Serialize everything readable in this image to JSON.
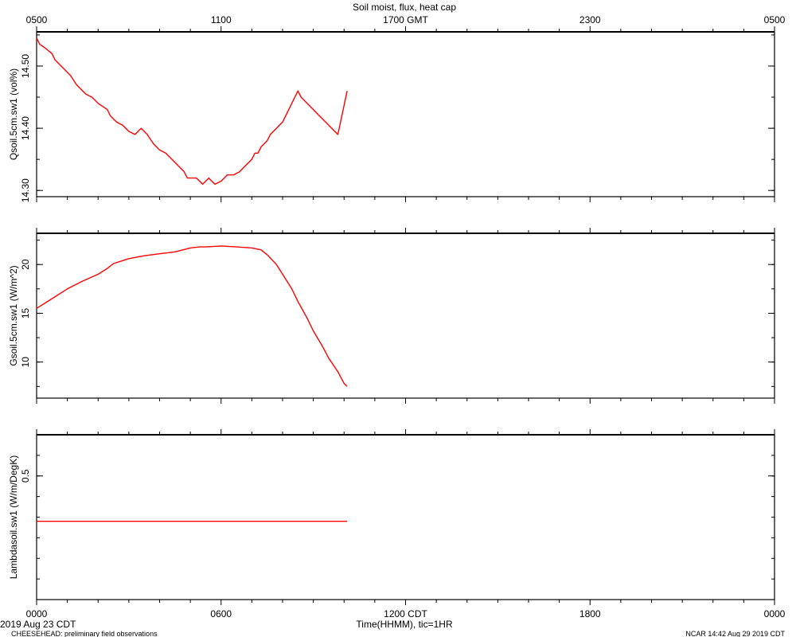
{
  "title": "Soil moist, flux, heat cap",
  "top_axis": {
    "labels": [
      "0500",
      "1100",
      "1700 GMT",
      "2300",
      "0500"
    ],
    "hours": [
      0,
      6,
      12,
      18,
      24
    ]
  },
  "bottom_axis": {
    "labels": [
      "0000",
      "0600",
      "1200 CDT",
      "1800",
      "0000"
    ],
    "hours": [
      0,
      6,
      12,
      18,
      24
    ],
    "xlabel": "Time(HHMM), tic=1HR"
  },
  "footer": {
    "date": "2019 Aug 23 CDT",
    "project": "CHEESEHEAD: preliminary field observations",
    "credit": "NCAR 14:42 Aug 29 2019 CDT"
  },
  "colors": {
    "series": "#ff0000",
    "axes": "#000000"
  },
  "chart_data": [
    {
      "type": "line",
      "ylabel": "Qsoil.5cm.sw1 (vol%)",
      "xlim": [
        0,
        24
      ],
      "ylim": [
        14.29,
        14.555
      ],
      "ytick_values": [
        14.3,
        14.4,
        14.5
      ],
      "ytick_labels": [
        "14.30",
        "14.40",
        "14.50"
      ],
      "ytick_minor": 0.05,
      "series": [
        {
          "x": [
            0,
            0.1,
            0.25,
            0.5,
            0.6,
            0.8,
            1.0,
            1.1,
            1.3,
            1.5,
            1.6,
            1.8,
            2.0,
            2.3,
            2.4,
            2.6,
            2.8,
            3.0,
            3.2,
            3.4,
            3.6,
            3.8,
            4.0,
            4.2,
            4.4,
            4.6,
            4.8,
            4.9,
            5.0,
            5.2,
            5.4,
            5.6,
            5.8,
            6.0,
            6.2,
            6.4,
            6.6,
            6.8,
            6.9,
            7.0,
            7.1,
            7.2,
            7.3,
            7.4,
            7.5,
            7.6,
            7.8,
            8.0,
            8.1,
            8.3,
            8.5,
            8.6,
            8.8,
            9.0,
            9.2,
            9.4,
            9.6,
            9.8,
            10.1
          ],
          "y": [
            14.545,
            14.535,
            14.53,
            14.52,
            14.51,
            14.5,
            14.49,
            14.485,
            14.47,
            14.46,
            14.455,
            14.45,
            14.44,
            14.43,
            14.42,
            14.41,
            14.405,
            14.395,
            14.39,
            14.4,
            14.39,
            14.375,
            14.365,
            14.36,
            14.35,
            14.34,
            14.33,
            14.32,
            14.32,
            14.32,
            14.31,
            14.32,
            14.31,
            14.315,
            14.325,
            14.325,
            14.33,
            14.34,
            14.345,
            14.35,
            14.36,
            14.36,
            14.37,
            14.375,
            14.38,
            14.39,
            14.4,
            14.41,
            14.42,
            14.44,
            14.46,
            14.45,
            14.44,
            14.43,
            14.42,
            14.41,
            14.4,
            14.39,
            14.46
          ]
        }
      ]
    },
    {
      "type": "line",
      "ylabel": "Gsoil.5cm.sw1 (W/m^2)",
      "xlim": [
        0,
        24
      ],
      "ylim": [
        6.3,
        23.2
      ],
      "ytick_values": [
        10,
        15,
        20
      ],
      "ytick_labels": [
        "10",
        "15",
        "20"
      ],
      "ytick_minor": 2.5,
      "series": [
        {
          "x": [
            0,
            0.5,
            1.0,
            1.5,
            2.0,
            2.3,
            2.5,
            2.8,
            3.0,
            3.5,
            4.0,
            4.5,
            5.0,
            5.3,
            5.5,
            6.0,
            6.5,
            7.0,
            7.3,
            7.5,
            7.8,
            8.0,
            8.3,
            8.5,
            8.8,
            9.0,
            9.3,
            9.5,
            9.8,
            10.0,
            10.1
          ],
          "y": [
            15.5,
            16.5,
            17.5,
            18.3,
            19.0,
            19.6,
            20.1,
            20.4,
            20.6,
            20.9,
            21.1,
            21.3,
            21.7,
            21.8,
            21.8,
            21.9,
            21.8,
            21.7,
            21.5,
            21.0,
            20.0,
            19.0,
            17.5,
            16.2,
            14.5,
            13.2,
            11.6,
            10.4,
            9.0,
            7.8,
            7.5
          ]
        }
      ]
    },
    {
      "type": "line",
      "ylabel": "Lambdasoil.sw1 (W/m/DegK)",
      "xlim": [
        0,
        24
      ],
      "ylim": [
        0.2,
        0.6
      ],
      "ytick_values": [
        0.5
      ],
      "ytick_labels": [
        "0.5"
      ],
      "ytick_minor": 0.05,
      "series": [
        {
          "x": [
            0,
            10.1
          ],
          "y": [
            0.39,
            0.39
          ]
        }
      ]
    }
  ]
}
